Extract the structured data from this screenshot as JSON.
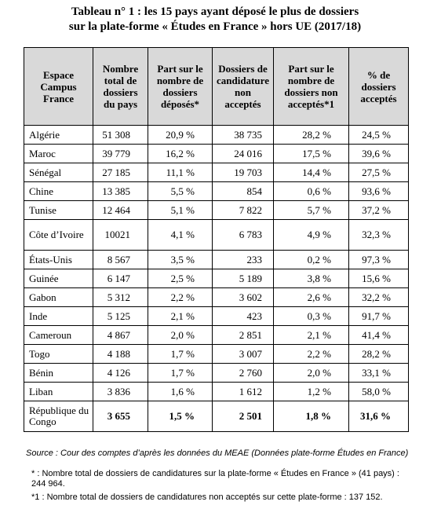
{
  "title": {
    "line1": "Tableau n° 1 : les 15 pays ayant déposé le plus de dossiers",
    "line2": "sur la plate-forme « Études en France » hors UE (2017/18)"
  },
  "headers": [
    "Espace Campus France",
    "Nombre total de dossiers du pays",
    "Part sur le nombre de dossiers déposés*",
    "Dossiers de candidature non acceptés",
    "Part sur le nombre de dossiers non acceptés*1",
    "% de dossiers acceptés"
  ],
  "rows": [
    [
      "Algérie",
      "51 308",
      "20,9 %",
      "38 735",
      "28,2 %",
      "24,5 %"
    ],
    [
      "Maroc",
      "39 779",
      "16,2 %",
      "24 016",
      "17,5 %",
      "39,6 %"
    ],
    [
      "Sénégal",
      "27 185",
      "11,1 %",
      "19 703",
      "14,4 %",
      "27,5 %"
    ],
    [
      "Chine",
      "13 385",
      "5,5 %",
      "854",
      "0,6 %",
      "93,6 %"
    ],
    [
      "Tunise",
      "12 464",
      "5,1 %",
      "7 822",
      "5,7 %",
      "37,2 %"
    ],
    [
      "Côte d’Ivoire",
      "10021",
      "4,1 %",
      "6 783",
      "4,9 %",
      "32,3 %"
    ],
    [
      "États-Unis",
      "8 567",
      "3,5 %",
      "233",
      "0,2 %",
      "97,3 %"
    ],
    [
      "Guinée",
      "6 147",
      "2,5 %",
      "5 189",
      "3,8 %",
      "15,6 %"
    ],
    [
      "Gabon",
      "5 312",
      "2,2 %",
      "3 602",
      "2,6 %",
      "32,2 %"
    ],
    [
      "Inde",
      "5 125",
      "2,1 %",
      "423",
      "0,3 %",
      "91,7 %"
    ],
    [
      "Cameroun",
      "4 867",
      "2,0 %",
      "2 851",
      "2,1 %",
      "41,4 %"
    ],
    [
      "Togo",
      "4 188",
      "1,7 %",
      "3 007",
      "2,2 %",
      "28,2 %"
    ],
    [
      "Bénin",
      "4 126",
      "1,7 %",
      "2 760",
      "2,0 %",
      "33,1 %"
    ],
    [
      "Liban",
      "3 836",
      "1,6 %",
      "1 612",
      "1,2 %",
      "58,0 %"
    ],
    [
      "République du Congo",
      "3 655",
      "1,5 %",
      "2 501",
      "1,8 %",
      "31,6 %"
    ]
  ],
  "source": "Source : Cour des comptes d’après les données du MEAE (Données plate-forme Études en France)",
  "notes": [
    "* : Nombre total de dossiers de candidatures sur la plate-forme « Études en France » (41 pays) : 244 964.",
    "*1 : Nombre total de dossiers de candidatures non acceptés sur cette plate-forme : 137 152."
  ]
}
